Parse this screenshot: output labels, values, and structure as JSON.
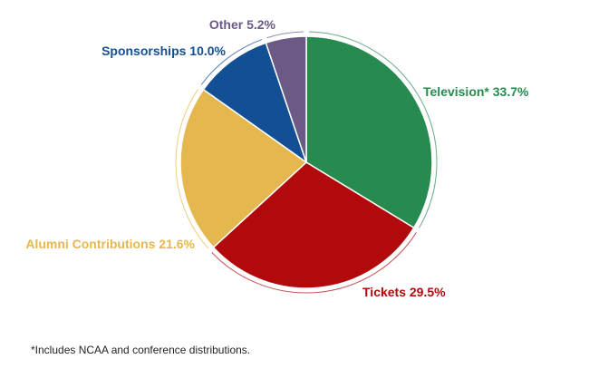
{
  "chart_data": {
    "type": "pie",
    "title": "",
    "slices": [
      {
        "label": "Television* 33.7%",
        "value": 33.7,
        "color": "#278a4e"
      },
      {
        "label": "Tickets 29.5%",
        "value": 29.5,
        "color": "#b20a0c"
      },
      {
        "label": "Alumni Contributions 21.6%",
        "value": 21.6,
        "color": "#e5b84f"
      },
      {
        "label": "Sponsorships 10.0%",
        "value": 10.0,
        "color": "#124f94"
      },
      {
        "label": "Other 5.2%",
        "value": 5.2,
        "color": "#6b5a86"
      }
    ],
    "label_colors": [
      "#278a4e",
      "#b20a0c",
      "#e5b84f",
      "#124f94",
      "#6b5a86"
    ]
  },
  "footnote": "*Includes NCAA and conference distributions."
}
